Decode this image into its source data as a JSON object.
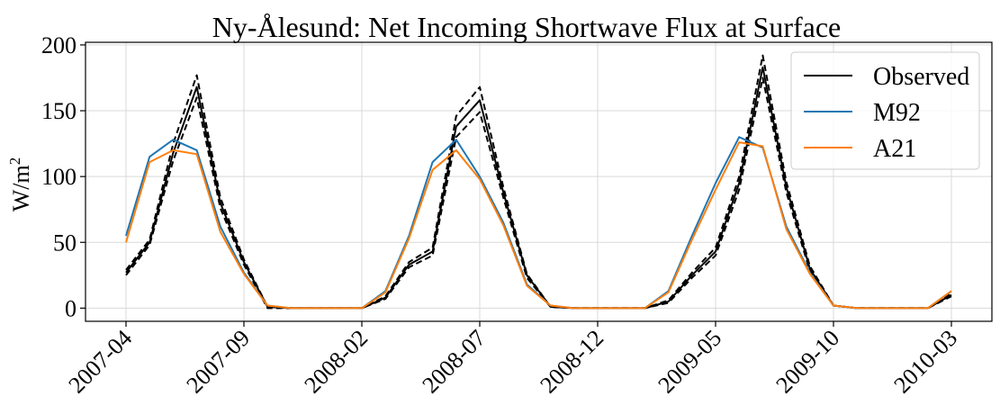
{
  "chart_data": {
    "type": "line",
    "title": "Ny-Ålesund: Net Incoming Shortwave Flux at Surface",
    "ylabel_base": "W/m",
    "ylabel_sup": "2",
    "xlabel": "",
    "x_tick_labels": [
      "2007-04",
      "2007-09",
      "2008-02",
      "2008-07",
      "2008-12",
      "2009-05",
      "2009-10",
      "2010-03"
    ],
    "x": [
      "2007-04",
      "2007-05",
      "2007-06",
      "2007-07",
      "2007-08",
      "2007-09",
      "2007-10",
      "2007-11",
      "2007-12",
      "2008-01",
      "2008-02",
      "2008-03",
      "2008-04",
      "2008-05",
      "2008-06",
      "2008-07",
      "2008-08",
      "2008-09",
      "2008-10",
      "2008-11",
      "2008-12",
      "2009-01",
      "2009-02",
      "2009-03",
      "2009-04",
      "2009-05",
      "2009-06",
      "2009-07",
      "2009-08",
      "2009-09",
      "2009-10",
      "2009-11",
      "2009-12",
      "2010-01",
      "2010-02",
      "2010-03"
    ],
    "ylim": [
      -10,
      202
    ],
    "y_ticks": [
      0,
      50,
      100,
      150,
      200
    ],
    "grid": true,
    "legend_position": "top-right",
    "series": [
      {
        "name": "Observed",
        "style": "solid",
        "color": "#000000",
        "values": [
          27,
          50,
          118,
          168,
          80,
          35,
          1,
          0,
          0,
          0,
          0,
          8,
          33,
          43,
          138,
          158,
          88,
          25,
          1,
          0,
          0,
          0,
          0,
          5,
          25,
          43,
          95,
          183,
          92,
          30,
          2,
          0,
          0,
          0,
          0,
          10
        ]
      },
      {
        "name": "Observed upper",
        "style": "dashed",
        "color": "#000000",
        "values": [
          29,
          52,
          125,
          177,
          84,
          37,
          1,
          0,
          0,
          0,
          0,
          9,
          35,
          46,
          146,
          168,
          92,
          26,
          1,
          0,
          0,
          0,
          0,
          6,
          27,
          46,
          100,
          192,
          96,
          32,
          2,
          0,
          0,
          0,
          0,
          11
        ]
      },
      {
        "name": "Observed lower",
        "style": "dashed",
        "color": "#000000",
        "values": [
          25,
          48,
          112,
          160,
          76,
          33,
          0,
          0,
          0,
          0,
          0,
          7,
          31,
          40,
          130,
          149,
          84,
          23,
          1,
          0,
          0,
          0,
          0,
          4,
          23,
          40,
          90,
          175,
          88,
          28,
          2,
          0,
          0,
          0,
          0,
          9
        ]
      },
      {
        "name": "M92",
        "style": "solid",
        "color": "#1f77b4",
        "values": [
          55,
          115,
          128,
          120,
          62,
          27,
          2,
          0,
          0,
          0,
          0,
          13,
          55,
          111,
          128,
          100,
          65,
          18,
          2,
          0,
          0,
          0,
          0,
          13,
          55,
          95,
          130,
          122,
          62,
          27,
          2,
          0,
          0,
          0,
          0,
          13
        ]
      },
      {
        "name": "A21",
        "style": "solid",
        "color": "#ff7f0e",
        "values": [
          50,
          111,
          120,
          117,
          58,
          26,
          2,
          0,
          0,
          0,
          0,
          12,
          53,
          105,
          120,
          98,
          63,
          17,
          2,
          0,
          0,
          0,
          0,
          12,
          52,
          90,
          126,
          123,
          60,
          26,
          2,
          0,
          0,
          0,
          0,
          13
        ]
      }
    ],
    "legend": [
      {
        "label": "Observed",
        "color": "#000000"
      },
      {
        "label": "M92",
        "color": "#1f77b4"
      },
      {
        "label": "A21",
        "color": "#ff7f0e"
      }
    ]
  }
}
